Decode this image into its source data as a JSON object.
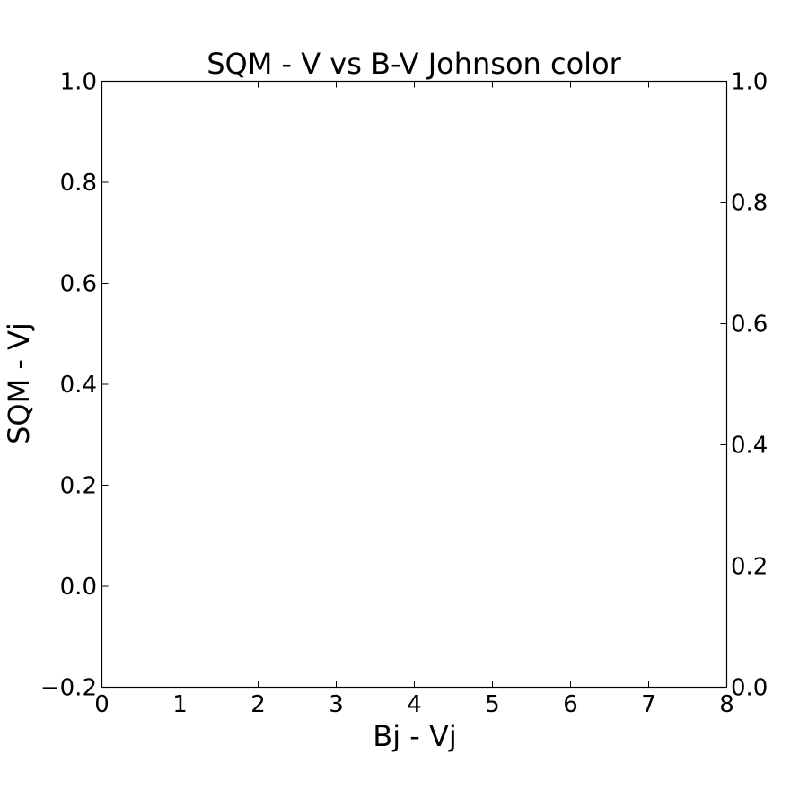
{
  "chart_data": {
    "type": "scatter",
    "title": "SQM - V vs B-V Johnson color",
    "xlabel": "Bj - Vj",
    "ylabel": "SQM - Vj",
    "xlim": [
      0,
      8
    ],
    "ylim": [
      -0.2,
      1.0
    ],
    "ylim_right": [
      0.0,
      1.0
    ],
    "x_ticks": [
      "0",
      "1",
      "2",
      "3",
      "4",
      "5",
      "6",
      "7",
      "8"
    ],
    "y_ticks": [
      "−0.2",
      "0.0",
      "0.2",
      "0.4",
      "0.6",
      "0.8",
      "1.0"
    ],
    "y_ticks_right": [
      "0.0",
      "0.2",
      "0.4",
      "0.6",
      "0.8",
      "1.0"
    ],
    "series": [],
    "grid": false,
    "legend": "none"
  }
}
